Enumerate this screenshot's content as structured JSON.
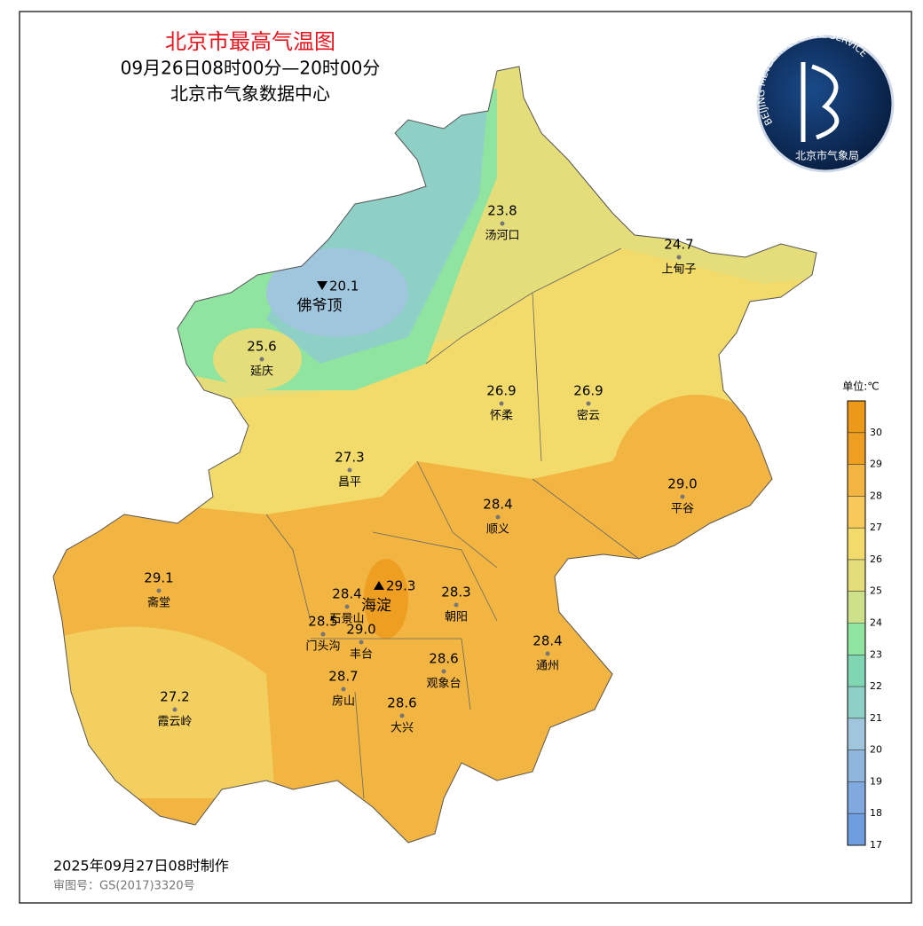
{
  "header": {
    "title": "北京市最高气温图",
    "subtitle": "09月26日08时00分—20时00分",
    "source": "北京市气象数据中心"
  },
  "logo": {
    "ring_text": "BEIJING METEOROLOGICAL SERVICE",
    "name": "北京市气象局"
  },
  "stations": [
    {
      "name": "汤河口",
      "value": 23.8
    },
    {
      "name": "上甸子",
      "value": 24.7
    },
    {
      "name": "佛爷顶",
      "value": 20.1,
      "marker": "min"
    },
    {
      "name": "延庆",
      "value": 25.6
    },
    {
      "name": "怀柔",
      "value": 26.9
    },
    {
      "name": "密云",
      "value": 26.9
    },
    {
      "name": "昌平",
      "value": 27.3
    },
    {
      "name": "平谷",
      "value": {
        "value": 29,
        "label": "29.0"
      }
    },
    {
      "name": "顺义",
      "value": 28.4
    },
    {
      "name": "斋堂",
      "value": 29.1
    },
    {
      "name": "海淀",
      "value": 29.3,
      "marker": "max"
    },
    {
      "name": "石景山",
      "value": 28.4
    },
    {
      "name": "朝阳",
      "value": 28.3
    },
    {
      "name": "门头沟",
      "value": 28.5
    },
    {
      "name": "丰台",
      "value": {
        "value": 29,
        "label": "29.0"
      }
    },
    {
      "name": "观象台",
      "value": 28.6
    },
    {
      "name": "通州",
      "value": 28.4
    },
    {
      "name": "房山",
      "value": 28.7
    },
    {
      "name": "大兴",
      "value": 28.6
    },
    {
      "name": "霞云岭",
      "value": 27.2
    }
  ],
  "legend": {
    "title": "单位:℃",
    "range": [
      17,
      31
    ],
    "ticks": [
      17,
      18,
      19,
      20,
      21,
      22,
      23,
      24,
      25,
      26,
      27,
      28,
      29,
      30
    ],
    "colors": [
      "#6f9ee0",
      "#80a9df",
      "#91b6de",
      "#9fc6dc",
      "#8fd0c6",
      "#80d6b3",
      "#8fe4a0",
      "#cfe08a",
      "#e5dc7a",
      "#f3db6b",
      "#f6c95a",
      "#f2b542",
      "#ee9f22",
      "#ec9818"
    ]
  },
  "footer": {
    "made": "2025年09月27日08时制作",
    "approval": "审图号：GS(2017)3320号"
  }
}
